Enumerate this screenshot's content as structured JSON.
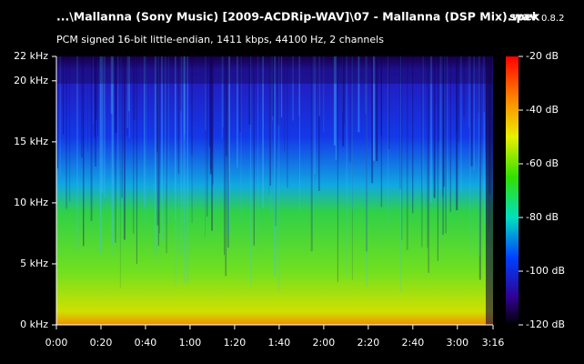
{
  "chart_data": {
    "type": "spectrogram",
    "title": "...\\Mallanna (Sony Music) [2009-ACDRip-WAV]\\07 - Mallanna (DSP Mix).wav",
    "subtitle": "PCM signed 16-bit little-endian, 1411 kbps, 44100 Hz, 2 channels",
    "app": "spek",
    "version": "0.8.2",
    "xlim": [
      0,
      196
    ],
    "xticks": [
      {
        "value": 0,
        "label": "0:00"
      },
      {
        "value": 20,
        "label": "0:20"
      },
      {
        "value": 40,
        "label": "0:40"
      },
      {
        "value": 60,
        "label": "1:00"
      },
      {
        "value": 80,
        "label": "1:20"
      },
      {
        "value": 100,
        "label": "1:40"
      },
      {
        "value": 120,
        "label": "2:00"
      },
      {
        "value": 140,
        "label": "2:20"
      },
      {
        "value": 160,
        "label": "2:40"
      },
      {
        "value": 180,
        "label": "3:00"
      },
      {
        "value": 196,
        "label": "3:16"
      }
    ],
    "ylim": [
      0,
      22
    ],
    "yticks": [
      {
        "value": 0,
        "label": "0 kHz"
      },
      {
        "value": 5,
        "label": "5 kHz"
      },
      {
        "value": 10,
        "label": "10 kHz"
      },
      {
        "value": 15,
        "label": "15 kHz"
      },
      {
        "value": 20,
        "label": "20 kHz"
      },
      {
        "value": 22,
        "label": "22 kHz"
      }
    ],
    "zlim": [
      -120,
      -20
    ],
    "zticks": [
      {
        "value": -20,
        "label": "-20 dB"
      },
      {
        "value": -40,
        "label": "-40 dB"
      },
      {
        "value": -60,
        "label": "-60 dB"
      },
      {
        "value": -80,
        "label": "-80 dB"
      },
      {
        "value": -100,
        "label": "-100 dB"
      },
      {
        "value": -120,
        "label": "-120 dB"
      }
    ]
  }
}
